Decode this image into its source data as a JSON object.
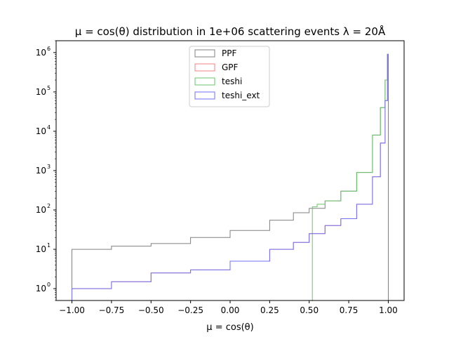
{
  "chart_data": {
    "type": "histogram",
    "title": "μ = cos(θ) distribution in 1e+06 scattering events λ = 20Å",
    "xlabel": "μ = cos(θ)",
    "ylabel": "",
    "xlim": [
      -1.1,
      1.1
    ],
    "ylim": [
      0.5,
      2000000
    ],
    "yscale": "log",
    "legend_position": "upper center",
    "x_ticks": [
      "−1.00",
      "−0.75",
      "−0.50",
      "−0.25",
      "0.00",
      "0.25",
      "0.50",
      "0.75",
      "1.00"
    ],
    "y_ticks": [
      "10",
      "10",
      "10",
      "10",
      "10",
      "10",
      "10"
    ],
    "y_tick_exponents": [
      "0",
      "1",
      "2",
      "3",
      "4",
      "5",
      "6"
    ],
    "series": [
      {
        "name": "PPF",
        "color": "#808080",
        "x": [
          -1.0,
          -0.75,
          -0.5,
          -0.25,
          0.0,
          0.25,
          0.4,
          0.5,
          0.6,
          0.7,
          0.8,
          0.9,
          0.95,
          0.98,
          0.995,
          1.0
        ],
        "y": [
          10,
          12,
          14,
          20,
          30,
          55,
          85,
          110,
          170,
          300,
          900,
          8000,
          40000,
          200000,
          900000,
          900000
        ]
      },
      {
        "name": "GPF",
        "color": "#f08080",
        "x": [
          -1.0,
          -0.75,
          -0.5,
          -0.25,
          0.0,
          0.25,
          0.4,
          0.5,
          0.6,
          0.7,
          0.8,
          0.9,
          0.95,
          0.98,
          0.995,
          1.0
        ],
        "y": [
          1,
          1.5,
          2.5,
          3,
          5,
          10,
          15,
          25,
          40,
          60,
          140,
          700,
          5000,
          60000,
          900000,
          900000
        ]
      },
      {
        "name": "teshi",
        "color": "#6ac46a",
        "x": [
          0.52,
          0.55,
          0.6,
          0.7,
          0.8,
          0.9,
          0.95,
          0.98,
          0.995,
          1.0
        ],
        "y": [
          120,
          140,
          170,
          300,
          900,
          8000,
          40000,
          200000,
          900000,
          900000
        ]
      },
      {
        "name": "teshi_ext",
        "color": "#7070f0",
        "x": [
          -1.0,
          -0.75,
          -0.5,
          -0.25,
          0.0,
          0.25,
          0.4,
          0.5,
          0.6,
          0.7,
          0.8,
          0.9,
          0.95,
          0.98,
          0.995,
          1.0
        ],
        "y": [
          1,
          1.5,
          2.5,
          3,
          5,
          10,
          15,
          25,
          40,
          60,
          140,
          700,
          5000,
          60000,
          900000,
          900000
        ]
      }
    ]
  }
}
